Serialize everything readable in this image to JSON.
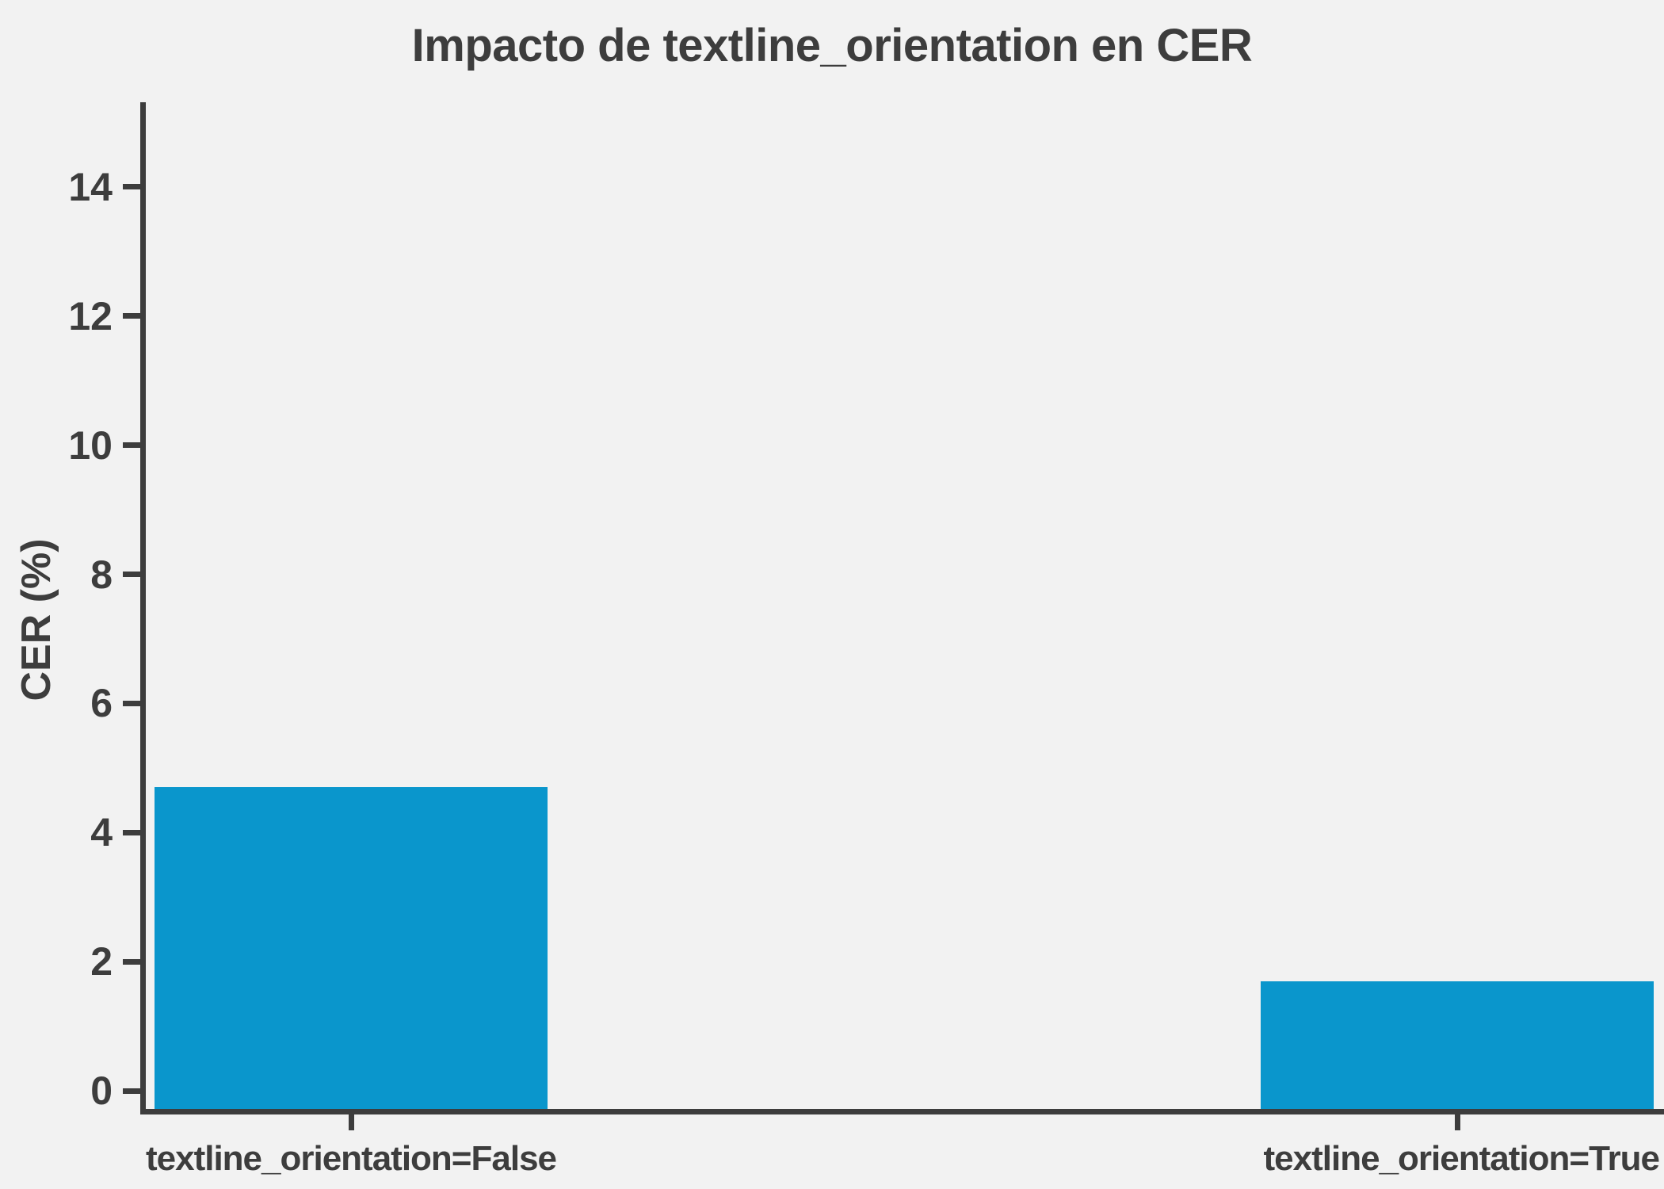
{
  "colors": {
    "background": "#f2f2f2",
    "ink": "#3d3d3d",
    "bar_blue": "#0a96cc"
  },
  "chart_data": {
    "type": "bar",
    "title": "Impacto de textline_orientation en CER",
    "xlabel": "",
    "ylabel": "CER (%)",
    "categories": [
      "textline_orientation=False",
      "textline_orientation=True"
    ],
    "values": [
      4.7,
      1.7
    ],
    "yticks": [
      0,
      2,
      4,
      6,
      8,
      10,
      12,
      14
    ],
    "ylim": [
      0,
      15.3
    ],
    "grid": false,
    "legend": "none",
    "bar_count": 2
  }
}
